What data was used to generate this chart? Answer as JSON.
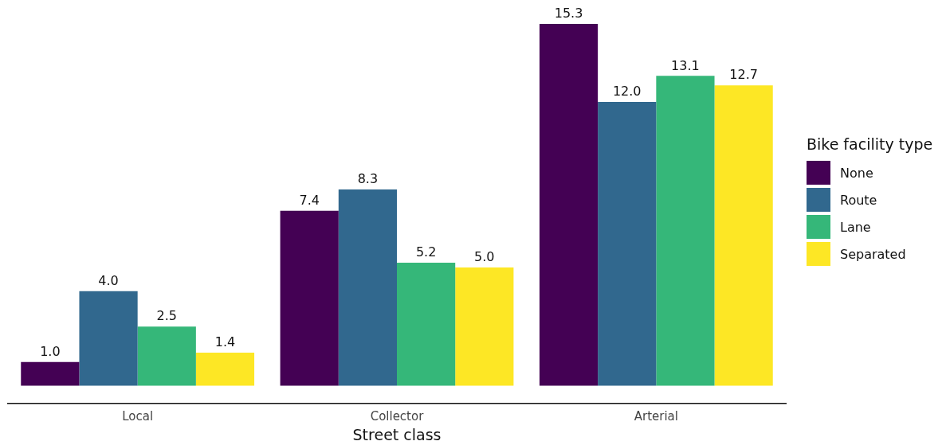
{
  "chart_data": {
    "type": "bar",
    "xlabel": "Street class",
    "legend_title": "Bike facility type",
    "categories": [
      "Local",
      "Collector",
      "Arterial"
    ],
    "series": [
      {
        "name": "None",
        "color": "#440154",
        "values": [
          1.0,
          7.4,
          15.3
        ],
        "value_labels": [
          "1.0",
          "7.4",
          "15.3"
        ]
      },
      {
        "name": "Route",
        "color": "#31688e",
        "values": [
          4.0,
          8.3,
          12.0
        ],
        "value_labels": [
          "4.0",
          "8.3",
          "12.0"
        ]
      },
      {
        "name": "Lane",
        "color": "#35b779",
        "values": [
          2.5,
          5.2,
          13.1
        ],
        "value_labels": [
          "2.5",
          "5.2",
          "13.1"
        ]
      },
      {
        "name": "Separated",
        "color": "#fde725",
        "values": [
          1.4,
          5.0,
          12.7
        ],
        "value_labels": [
          "1.4",
          "5.0",
          "12.7"
        ]
      }
    ],
    "legend": "right"
  }
}
